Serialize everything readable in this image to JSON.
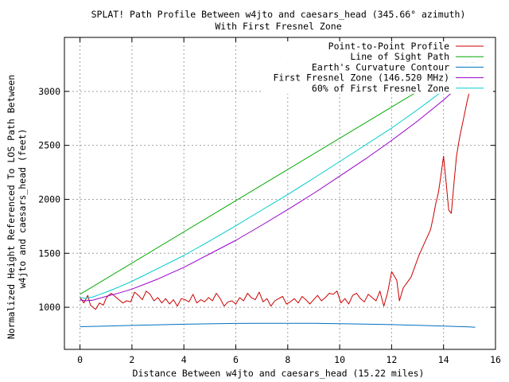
{
  "chart_data": {
    "type": "line",
    "title": "SPLAT! Path Profile Between w4jto and caesars_head (345.66° azimuth)",
    "subtitle": "With First Fresnel Zone",
    "xlabel": "Distance Between w4jto and caesars_head (15.22 miles)",
    "ylabel_line1": "Normalized Height Referenced To LOS Path Between",
    "ylabel_line2": "w4jto and caesars_head (feet)",
    "xlim": [
      -0.6,
      16
    ],
    "ylim": [
      610,
      3500
    ],
    "xticks": [
      0,
      2,
      4,
      6,
      8,
      10,
      12,
      14,
      16
    ],
    "yticks": [
      1000,
      1500,
      2000,
      2500,
      3000
    ],
    "grid": true,
    "legend_position": "top-right",
    "series": [
      {
        "name": "Point-to-Point Profile",
        "color": "#cc0000",
        "x": [
          0.0,
          0.15,
          0.3,
          0.4,
          0.5,
          0.6,
          0.75,
          0.9,
          1.0,
          1.1,
          1.2,
          1.35,
          1.5,
          1.65,
          1.8,
          1.95,
          2.1,
          2.25,
          2.4,
          2.55,
          2.7,
          2.85,
          3.0,
          3.15,
          3.3,
          3.45,
          3.6,
          3.75,
          3.9,
          4.05,
          4.2,
          4.35,
          4.5,
          4.65,
          4.8,
          4.95,
          5.1,
          5.25,
          5.4,
          5.55,
          5.7,
          5.85,
          6.0,
          6.15,
          6.3,
          6.45,
          6.6,
          6.75,
          6.9,
          7.05,
          7.2,
          7.35,
          7.5,
          7.65,
          7.8,
          7.95,
          8.1,
          8.25,
          8.4,
          8.55,
          8.7,
          8.85,
          9.0,
          9.15,
          9.3,
          9.45,
          9.6,
          9.75,
          9.9,
          10.05,
          10.2,
          10.35,
          10.5,
          10.65,
          10.8,
          10.95,
          11.1,
          11.25,
          11.4,
          11.55,
          11.7,
          11.85,
          12.0,
          12.1,
          12.2,
          12.3,
          12.45,
          12.6,
          12.75,
          12.9,
          13.05,
          13.2,
          13.35,
          13.5,
          13.6,
          13.7,
          13.8,
          13.9,
          14.0,
          14.1,
          14.2,
          14.3,
          14.4,
          14.5,
          14.6,
          14.7,
          14.8,
          14.9,
          15.0,
          15.1,
          15.22
        ],
        "values": [
          1090,
          1040,
          1110,
          1020,
          1000,
          980,
          1040,
          1020,
          1080,
          1110,
          1130,
          1100,
          1070,
          1040,
          1060,
          1050,
          1140,
          1110,
          1070,
          1150,
          1120,
          1060,
          1090,
          1040,
          1080,
          1030,
          1070,
          1010,
          1080,
          1070,
          1050,
          1120,
          1040,
          1070,
          1050,
          1090,
          1060,
          1130,
          1080,
          1010,
          1050,
          1060,
          1030,
          1090,
          1060,
          1130,
          1090,
          1070,
          1140,
          1050,
          1080,
          1010,
          1060,
          1080,
          1100,
          1030,
          1050,
          1080,
          1040,
          1100,
          1070,
          1030,
          1070,
          1110,
          1060,
          1090,
          1130,
          1120,
          1150,
          1040,
          1080,
          1030,
          1110,
          1130,
          1080,
          1050,
          1120,
          1090,
          1060,
          1150,
          1010,
          1140,
          1330,
          1290,
          1250,
          1060,
          1180,
          1230,
          1280,
          1380,
          1480,
          1560,
          1640,
          1720,
          1830,
          1960,
          2060,
          2220,
          2400,
          2150,
          1900,
          1870,
          2150,
          2400,
          2550,
          2670,
          2780,
          2900,
          3000,
          3100,
          3120
        ]
      },
      {
        "name": "Line of Sight Path",
        "color": "#00aa00",
        "x": [
          0,
          15.22
        ],
        "values": [
          1120,
          3320
        ]
      },
      {
        "name": "Earth's Curvature Contour",
        "color": "#0070c0",
        "x": [
          0,
          1,
          2,
          3,
          4,
          5,
          6,
          7,
          8,
          9,
          10,
          11,
          12,
          13,
          14,
          15,
          15.22
        ],
        "values": [
          820,
          826,
          832,
          838,
          843,
          847,
          850,
          852,
          852,
          851,
          848,
          844,
          839,
          833,
          826,
          818,
          815
        ]
      },
      {
        "name": "First Fresnel Zone (146.520 MHz)",
        "color": "#9900cc",
        "x": [
          0,
          0.2,
          0.5,
          1,
          1.5,
          2,
          3,
          4,
          5,
          6,
          7,
          8,
          9,
          10,
          11,
          12,
          13,
          14,
          14.5,
          15,
          15.22
        ],
        "values": [
          1070,
          1060,
          1066,
          1100,
          1132,
          1168,
          1262,
          1370,
          1495,
          1620,
          1760,
          1905,
          2055,
          2215,
          2375,
          2545,
          2725,
          2920,
          3030,
          3190,
          3300
        ]
      },
      {
        "name": "60% of First Fresnel Zone",
        "color": "#00cccc",
        "x": [
          0,
          0.2,
          0.5,
          1,
          1.5,
          2,
          3,
          4,
          5,
          6,
          7,
          8,
          9,
          10,
          11,
          12,
          13,
          14,
          14.5,
          15,
          15.22
        ],
        "values": [
          1090,
          1084,
          1096,
          1140,
          1188,
          1240,
          1360,
          1480,
          1615,
          1755,
          1900,
          2045,
          2195,
          2350,
          2505,
          2660,
          2830,
          3010,
          3110,
          3240,
          3310
        ]
      }
    ]
  }
}
